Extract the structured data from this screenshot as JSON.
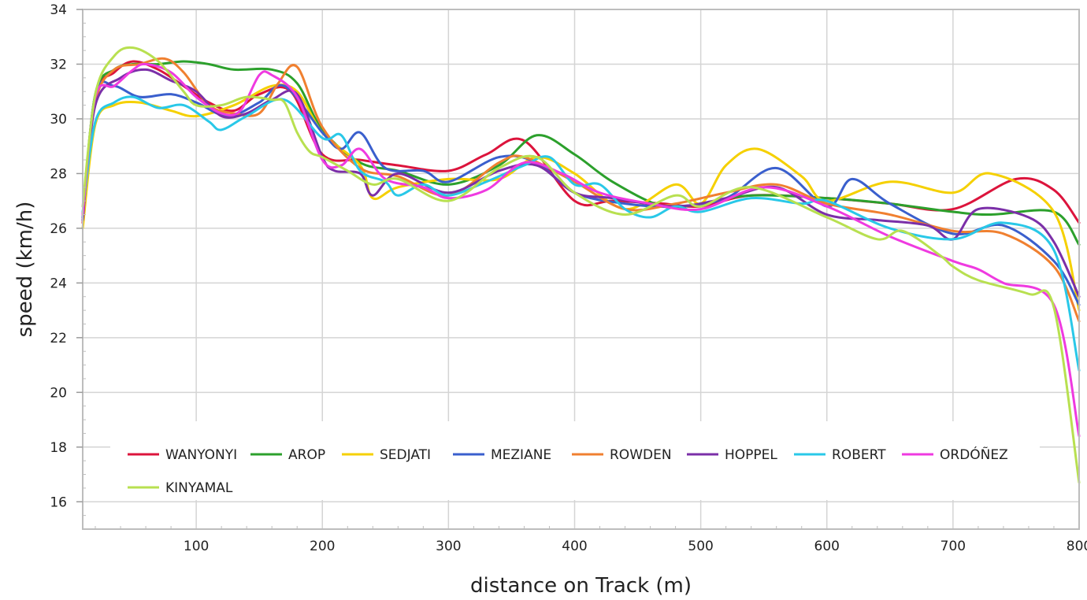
{
  "chart_data": {
    "type": "line",
    "title": "",
    "xlabel": "distance on Track (m)",
    "ylabel": "speed (km/h)",
    "xlim": [
      10,
      800
    ],
    "ylim": [
      15,
      34
    ],
    "xticks": [
      100,
      200,
      300,
      400,
      500,
      600,
      700,
      800
    ],
    "yticks": [
      16,
      18,
      20,
      22,
      24,
      26,
      28,
      30,
      32,
      34
    ],
    "grid": true,
    "legend_position": "bottom-left, inside plot",
    "series": [
      {
        "name": "WANYONYI",
        "color": "#dc143c",
        "x": [
          10,
          20,
          35,
          50,
          70,
          90,
          110,
          130,
          150,
          175,
          200,
          230,
          260,
          300,
          330,
          360,
          400,
          430,
          470,
          500,
          540,
          600,
          650,
          700,
          750,
          780,
          800
        ],
        "y": [
          26.2,
          30.8,
          31.7,
          32.1,
          31.8,
          31.2,
          30.6,
          30.3,
          30.9,
          31.0,
          28.7,
          28.5,
          28.3,
          28.1,
          28.7,
          29.2,
          27.0,
          27.0,
          26.9,
          26.8,
          27.2,
          27.1,
          26.9,
          26.7,
          27.8,
          27.4,
          26.2
        ]
      },
      {
        "name": "AROP",
        "color": "#2ca02c",
        "x": [
          10,
          20,
          35,
          50,
          70,
          90,
          110,
          130,
          160,
          180,
          200,
          230,
          260,
          300,
          340,
          370,
          400,
          430,
          470,
          500,
          540,
          600,
          650,
          700,
          730,
          780,
          800
        ],
        "y": [
          26.5,
          30.9,
          31.8,
          32.0,
          32.0,
          32.1,
          32.0,
          31.8,
          31.8,
          31.3,
          29.6,
          28.4,
          28.1,
          27.6,
          28.3,
          29.4,
          28.7,
          27.7,
          26.8,
          26.9,
          27.2,
          27.1,
          26.9,
          26.6,
          26.5,
          26.6,
          25.4
        ]
      },
      {
        "name": "SEDJATI",
        "color": "#f5d000",
        "x": [
          10,
          20,
          35,
          55,
          80,
          100,
          130,
          160,
          180,
          200,
          230,
          240,
          260,
          300,
          340,
          370,
          400,
          440,
          480,
          500,
          520,
          545,
          580,
          600,
          650,
          700,
          730,
          780,
          800
        ],
        "y": [
          26.0,
          29.8,
          30.5,
          30.6,
          30.3,
          30.1,
          30.5,
          31.2,
          31.0,
          29.5,
          28.3,
          27.1,
          27.5,
          27.8,
          27.8,
          28.6,
          28.0,
          26.7,
          27.6,
          26.9,
          28.3,
          28.9,
          27.9,
          27.0,
          27.7,
          27.3,
          28.0,
          26.6,
          23.0
        ]
      },
      {
        "name": "MEZIANE",
        "color": "#3a5fcd",
        "x": [
          10,
          20,
          35,
          55,
          80,
          100,
          125,
          150,
          170,
          200,
          215,
          230,
          250,
          280,
          300,
          340,
          370,
          400,
          440,
          480,
          520,
          560,
          600,
          620,
          650,
          700,
          740,
          780,
          800
        ],
        "y": [
          26.4,
          30.9,
          31.2,
          30.8,
          30.9,
          30.6,
          30.1,
          30.6,
          31.2,
          29.5,
          28.9,
          29.5,
          28.2,
          28.1,
          27.7,
          28.6,
          28.4,
          27.3,
          26.9,
          26.8,
          27.1,
          28.2,
          26.8,
          27.8,
          26.9,
          25.8,
          26.1,
          24.8,
          23.2
        ]
      },
      {
        "name": "ROWDEN",
        "color": "#f08030",
        "x": [
          10,
          20,
          35,
          55,
          75,
          90,
          110,
          130,
          150,
          165,
          180,
          200,
          230,
          260,
          300,
          340,
          360,
          400,
          440,
          480,
          520,
          560,
          600,
          650,
          700,
          740,
          780,
          800
        ],
        "y": [
          26.5,
          30.6,
          31.8,
          32.0,
          32.2,
          31.7,
          30.5,
          30.2,
          30.2,
          31.3,
          31.9,
          29.7,
          28.2,
          27.9,
          27.2,
          28.4,
          28.6,
          27.7,
          26.7,
          26.9,
          27.3,
          27.6,
          26.9,
          26.5,
          25.9,
          25.8,
          24.6,
          22.6
        ]
      },
      {
        "name": "HOPPEL",
        "color": "#7b2fa8",
        "x": [
          10,
          20,
          40,
          60,
          80,
          100,
          120,
          140,
          160,
          180,
          200,
          210,
          230,
          240,
          260,
          300,
          340,
          370,
          400,
          430,
          480,
          520,
          560,
          600,
          640,
          680,
          700,
          720,
          760,
          780,
          800
        ],
        "y": [
          26.3,
          30.5,
          31.5,
          31.8,
          31.4,
          31.0,
          30.1,
          30.2,
          30.7,
          30.9,
          28.6,
          28.1,
          28.0,
          27.2,
          28.0,
          27.3,
          28.1,
          28.3,
          27.3,
          27.1,
          26.8,
          27.1,
          27.5,
          26.5,
          26.3,
          26.1,
          25.6,
          26.7,
          26.4,
          25.5,
          23.5
        ]
      },
      {
        "name": "ROBERT",
        "color": "#29c8e8",
        "x": [
          10,
          20,
          35,
          50,
          70,
          90,
          110,
          120,
          140,
          170,
          200,
          215,
          230,
          250,
          260,
          280,
          300,
          330,
          360,
          380,
          400,
          420,
          440,
          460,
          480,
          500,
          540,
          580,
          600,
          650,
          700,
          740,
          780,
          800
        ],
        "y": [
          26.6,
          29.9,
          30.6,
          30.8,
          30.4,
          30.5,
          29.9,
          29.6,
          30.1,
          30.7,
          29.3,
          29.4,
          28.1,
          27.7,
          27.2,
          27.6,
          27.2,
          27.7,
          28.3,
          28.6,
          27.6,
          27.6,
          26.7,
          26.4,
          26.8,
          26.6,
          27.1,
          26.9,
          27.0,
          26.0,
          25.6,
          26.2,
          25.2,
          20.8
        ]
      },
      {
        "name": "ORDÓÑEZ",
        "color": "#ef3ae0",
        "x": [
          10,
          20,
          35,
          50,
          60,
          80,
          100,
          120,
          135,
          150,
          160,
          180,
          200,
          215,
          230,
          250,
          280,
          300,
          330,
          360,
          390,
          420,
          460,
          500,
          550,
          600,
          650,
          700,
          720,
          740,
          780,
          800
        ],
        "y": [
          26.5,
          30.8,
          31.2,
          31.8,
          32.0,
          31.7,
          30.8,
          30.2,
          30.3,
          31.6,
          31.6,
          30.8,
          28.5,
          28.3,
          28.9,
          27.8,
          27.5,
          27.1,
          27.4,
          28.4,
          28.0,
          27.3,
          26.9,
          26.7,
          27.5,
          26.8,
          25.7,
          24.8,
          24.5,
          24.0,
          23.2,
          18.4
        ]
      },
      {
        "name": "KINYAMAL",
        "color": "#b8e050",
        "x": [
          10,
          20,
          35,
          50,
          70,
          90,
          100,
          120,
          140,
          160,
          170,
          180,
          190,
          200,
          220,
          240,
          260,
          300,
          340,
          370,
          400,
          440,
          480,
          500,
          540,
          600,
          640,
          660,
          690,
          700,
          720,
          760,
          780,
          800
        ],
        "y": [
          26.8,
          30.9,
          32.3,
          32.6,
          32.1,
          31.0,
          30.5,
          30.5,
          30.8,
          30.7,
          30.6,
          29.5,
          28.8,
          28.6,
          28.1,
          27.6,
          27.8,
          27.0,
          28.2,
          28.6,
          27.3,
          26.5,
          27.2,
          26.8,
          27.5,
          26.4,
          25.6,
          25.9,
          25.0,
          24.6,
          24.1,
          23.6,
          23.1,
          16.7
        ]
      }
    ]
  }
}
